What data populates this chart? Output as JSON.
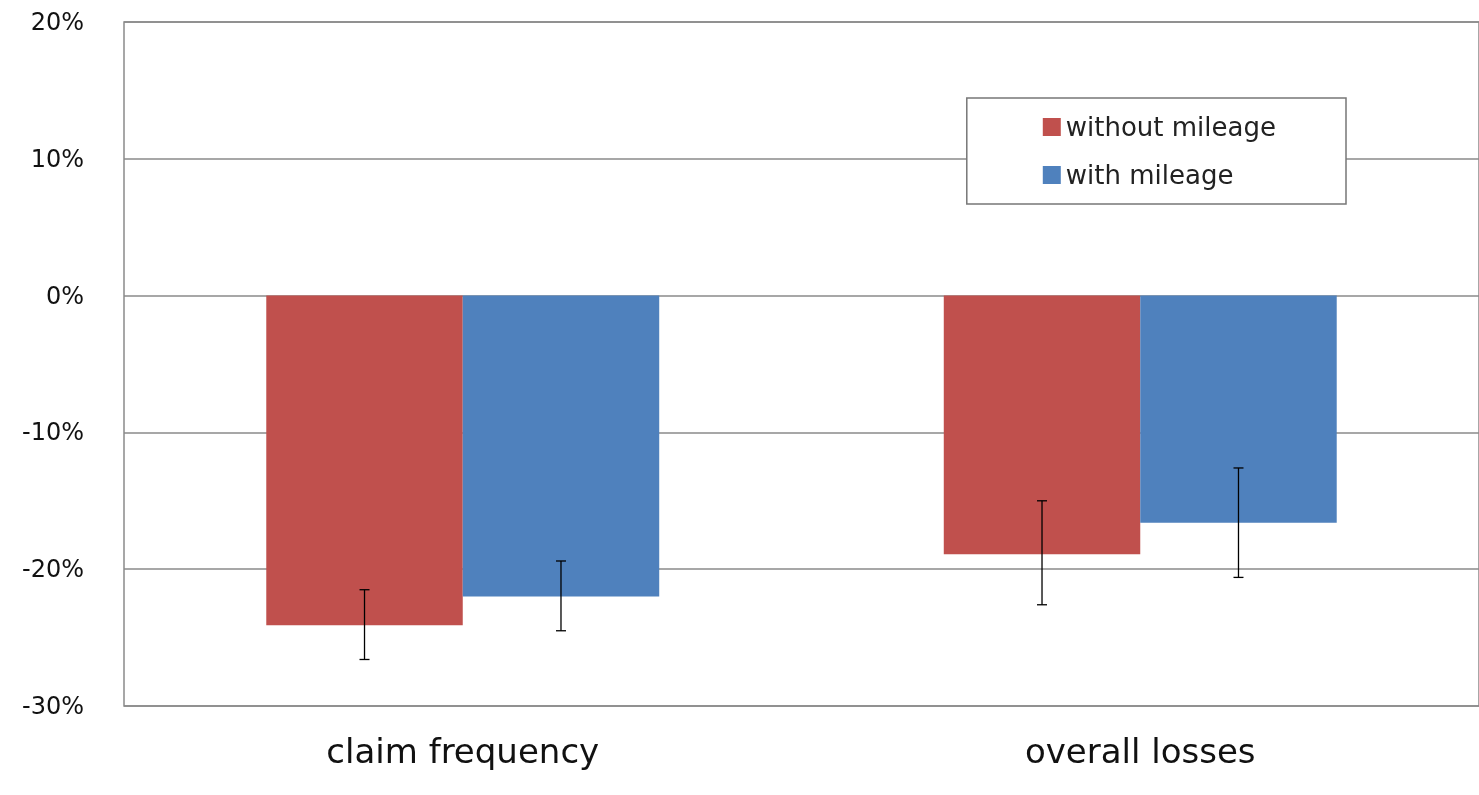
{
  "chart_data": {
    "type": "bar",
    "categories": [
      "claim frequency",
      "overall losses"
    ],
    "series": [
      {
        "name": "without mileage",
        "color": "#c0504d",
        "values": [
          -24.1,
          -18.9
        ],
        "errors": [
          [
            -26.6,
            -21.5
          ],
          [
            -22.6,
            -15.0
          ]
        ]
      },
      {
        "name": "with mileage",
        "color": "#4f81bd",
        "values": [
          -22.0,
          -16.6
        ],
        "errors": [
          [
            -24.5,
            -19.4
          ],
          [
            -20.6,
            -12.6
          ]
        ]
      }
    ],
    "ylim": [
      -30,
      20
    ],
    "yticks": [
      {
        "value": -30,
        "label": "-30%"
      },
      {
        "value": -20,
        "label": "-20%"
      },
      {
        "value": -10,
        "label": "-10%"
      },
      {
        "value": 0,
        "label": "0%"
      },
      {
        "value": 10,
        "label": "10%"
      },
      {
        "value": 20,
        "label": "20%"
      }
    ],
    "grid": "y",
    "legend": "top right"
  }
}
